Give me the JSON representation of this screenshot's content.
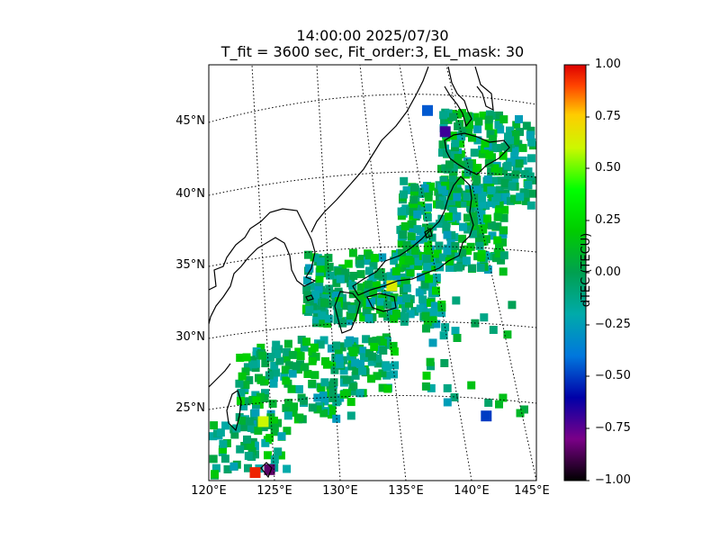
{
  "title": {
    "line1": "14:00:00 2025/07/30",
    "line2": "T_fit = 3600 sec, Fit_order:3, EL_mask: 30"
  },
  "map": {
    "lon_range": [
      120,
      145
    ],
    "lat_range": [
      20,
      49
    ],
    "lat_labels": [
      "25°N",
      "30°N",
      "35°N",
      "40°N",
      "45°N"
    ],
    "lon_labels": [
      "120°E",
      "125°E",
      "130°E",
      "135°E",
      "140°E",
      "145°E"
    ],
    "graticule_style": "dotted",
    "coastline_color": "#000000"
  },
  "colorbar": {
    "label": "dTEC (TECU)",
    "vmin": -1.0,
    "vmax": 1.0,
    "colormap": "nipy_spectral",
    "tick_labels": [
      "1.00",
      "0.75",
      "0.50",
      "0.25",
      "0.00",
      "−0.25",
      "−0.50",
      "−0.75",
      "−1.00"
    ]
  },
  "data_summary": {
    "dominant_value_range": [
      -0.25,
      0.25
    ],
    "notable_points": [
      {
        "lon": 123.5,
        "lat": 21.0,
        "dtec": 0.95
      },
      {
        "lon": 124.6,
        "lat": 21.1,
        "dtec": -0.85
      },
      {
        "lon": 124.0,
        "lat": 24.5,
        "dtec": 0.6
      },
      {
        "lon": 133.5,
        "lat": 33.6,
        "dtec": 0.65
      },
      {
        "lon": 135.8,
        "lat": 45.9,
        "dtec": -0.45
      },
      {
        "lon": 137.2,
        "lat": 44.5,
        "dtec": -0.7
      },
      {
        "lon": 141.0,
        "lat": 25.0,
        "dtec": -0.5
      }
    ]
  }
}
